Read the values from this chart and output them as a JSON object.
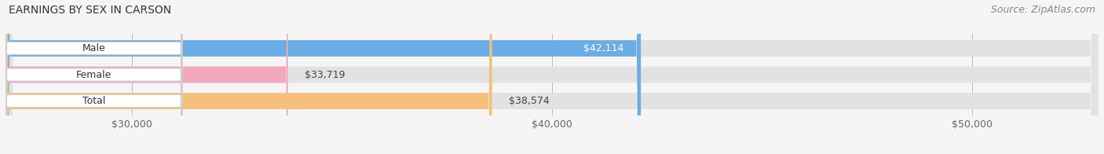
{
  "title": "EARNINGS BY SEX IN CARSON",
  "source": "Source: ZipAtlas.com",
  "categories": [
    "Male",
    "Female",
    "Total"
  ],
  "values": [
    42114,
    33719,
    38574
  ],
  "bar_colors": [
    "#6aade4",
    "#f4a8bc",
    "#f5c07a"
  ],
  "bar_bg_color": "#e2e2e2",
  "xlim_min": 27000,
  "xlim_max": 53000,
  "xticks": [
    30000,
    40000,
    50000
  ],
  "xtick_labels": [
    "$30,000",
    "$40,000",
    "$50,000"
  ],
  "value_labels": [
    "$42,114",
    "$33,719",
    "$38,574"
  ],
  "value_inside": [
    true,
    false,
    false
  ],
  "title_fontsize": 10,
  "source_fontsize": 9,
  "cat_label_fontsize": 9,
  "value_fontsize": 9,
  "tick_fontsize": 9,
  "figsize": [
    14.06,
    1.96
  ],
  "dpi": 100,
  "bar_height": 0.62,
  "background_color": "#f5f5f5"
}
